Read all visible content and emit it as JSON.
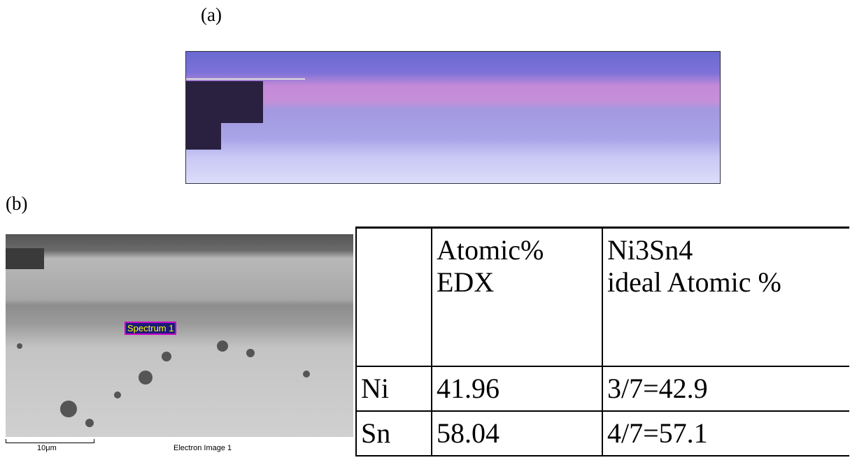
{
  "labels": {
    "a": "(a)",
    "b": "(b)"
  },
  "sem": {
    "spectrum": "Spectrum 1",
    "scale_label": "10μm",
    "caption": "Electron Image 1"
  },
  "table": {
    "header": [
      [
        "Atomic%",
        "EDX"
      ],
      [
        "Ni3Sn4",
        "ideal Atomic %"
      ]
    ],
    "rows": [
      [
        "Ni",
        "41.96",
        "3/7=42.9"
      ],
      [
        "Sn",
        "58.04",
        "4/7=57.1"
      ]
    ]
  }
}
